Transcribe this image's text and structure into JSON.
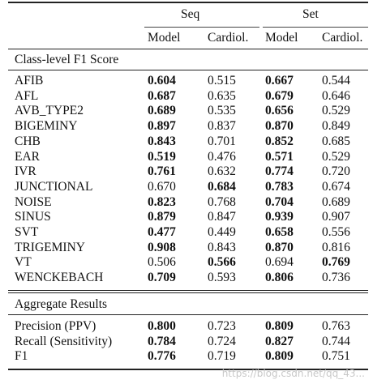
{
  "table": {
    "group_headers": [
      "Seq",
      "Set"
    ],
    "col_headers": [
      "Model",
      "Cardiol.",
      "Model",
      "Cardiol."
    ],
    "sections": [
      {
        "title": "Class-level F1 Score",
        "rows": [
          {
            "label": "AFIB",
            "vals": [
              "0.604",
              "0.515",
              "0.667",
              "0.544"
            ],
            "bold": [
              true,
              false,
              true,
              false
            ]
          },
          {
            "label": "AFL",
            "vals": [
              "0.687",
              "0.635",
              "0.679",
              "0.646"
            ],
            "bold": [
              true,
              false,
              true,
              false
            ]
          },
          {
            "label": "AVB_TYPE2",
            "vals": [
              "0.689",
              "0.535",
              "0.656",
              "0.529"
            ],
            "bold": [
              true,
              false,
              true,
              false
            ]
          },
          {
            "label": "BIGEMINY",
            "vals": [
              "0.897",
              "0.837",
              "0.870",
              "0.849"
            ],
            "bold": [
              true,
              false,
              true,
              false
            ]
          },
          {
            "label": "CHB",
            "vals": [
              "0.843",
              "0.701",
              "0.852",
              "0.685"
            ],
            "bold": [
              true,
              false,
              true,
              false
            ]
          },
          {
            "label": "EAR",
            "vals": [
              "0.519",
              "0.476",
              "0.571",
              "0.529"
            ],
            "bold": [
              true,
              false,
              true,
              false
            ]
          },
          {
            "label": "IVR",
            "vals": [
              "0.761",
              "0.632",
              "0.774",
              "0.720"
            ],
            "bold": [
              true,
              false,
              true,
              false
            ]
          },
          {
            "label": "JUNCTIONAL",
            "vals": [
              "0.670",
              "0.684",
              "0.783",
              "0.674"
            ],
            "bold": [
              false,
              true,
              true,
              false
            ]
          },
          {
            "label": "NOISE",
            "vals": [
              "0.823",
              "0.768",
              "0.704",
              "0.689"
            ],
            "bold": [
              true,
              false,
              true,
              false
            ]
          },
          {
            "label": "SINUS",
            "vals": [
              "0.879",
              "0.847",
              "0.939",
              "0.907"
            ],
            "bold": [
              true,
              false,
              true,
              false
            ]
          },
          {
            "label": "SVT",
            "vals": [
              "0.477",
              "0.449",
              "0.658",
              "0.556"
            ],
            "bold": [
              true,
              false,
              true,
              false
            ]
          },
          {
            "label": "TRIGEMINY",
            "vals": [
              "0.908",
              "0.843",
              "0.870",
              "0.816"
            ],
            "bold": [
              true,
              false,
              true,
              false
            ]
          },
          {
            "label": "VT",
            "vals": [
              "0.506",
              "0.566",
              "0.694",
              "0.769"
            ],
            "bold": [
              false,
              true,
              false,
              true
            ]
          },
          {
            "label": "WENCKEBACH",
            "vals": [
              "0.709",
              "0.593",
              "0.806",
              "0.736"
            ],
            "bold": [
              true,
              false,
              true,
              false
            ]
          }
        ]
      },
      {
        "title": "Aggregate Results",
        "rows": [
          {
            "label": "Precision (PPV)",
            "vals": [
              "0.800",
              "0.723",
              "0.809",
              "0.763"
            ],
            "bold": [
              true,
              false,
              true,
              false
            ]
          },
          {
            "label": "Recall (Sensitivity)",
            "vals": [
              "0.784",
              "0.724",
              "0.827",
              "0.744"
            ],
            "bold": [
              true,
              false,
              true,
              false
            ]
          },
          {
            "label": "F1",
            "vals": [
              "0.776",
              "0.719",
              "0.809",
              "0.751"
            ],
            "bold": [
              true,
              false,
              true,
              false
            ]
          }
        ]
      }
    ]
  },
  "watermark": "https://blog.csdn.net/qq_43..."
}
